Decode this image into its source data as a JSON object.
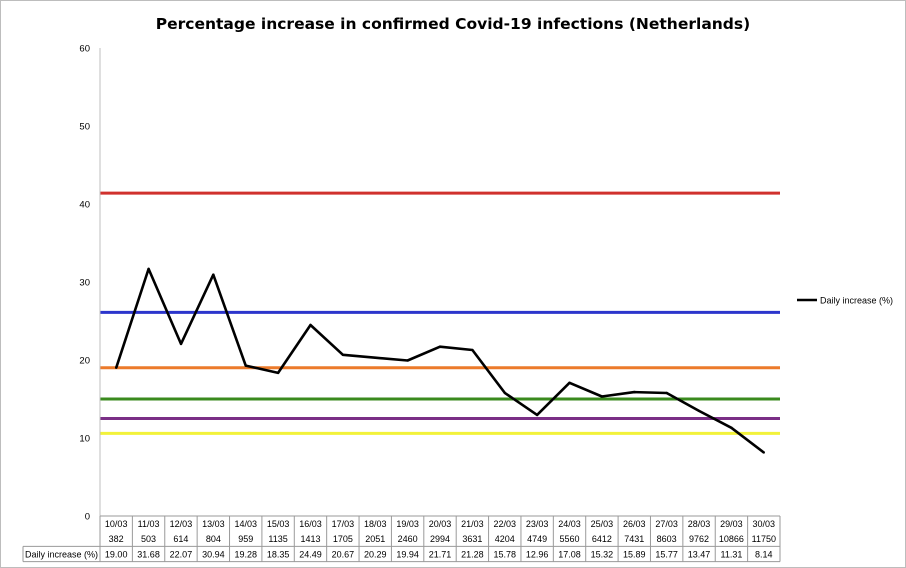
{
  "chart_data": {
    "type": "line",
    "title": "Percentage increase in confirmed Covid-19 infections (Netherlands)",
    "ylim": [
      0,
      60
    ],
    "yticks": [
      0,
      10,
      20,
      30,
      40,
      50,
      60
    ],
    "grid": false,
    "legend_position": "right",
    "categories": [
      "10/03",
      "11/03",
      "12/03",
      "13/03",
      "14/03",
      "15/03",
      "16/03",
      "17/03",
      "18/03",
      "19/03",
      "20/03",
      "21/03",
      "22/03",
      "23/03",
      "24/03",
      "25/03",
      "26/03",
      "27/03",
      "28/03",
      "29/03",
      "30/03"
    ],
    "confirmed_cases": [
      "382",
      "503",
      "614",
      "804",
      "959",
      "1135",
      "1413",
      "1705",
      "2051",
      "2460",
      "2994",
      "3631",
      "4204",
      "4749",
      "5560",
      "6412",
      "7431",
      "8603",
      "9762",
      "10866",
      "11750"
    ],
    "series": [
      {
        "name": "Daily increase (%)",
        "color": "#000000",
        "values": [
          19.0,
          31.68,
          22.07,
          30.94,
          19.28,
          18.35,
          24.49,
          20.67,
          20.29,
          19.94,
          21.71,
          21.28,
          15.78,
          12.96,
          17.08,
          15.32,
          15.89,
          15.77,
          13.47,
          11.31,
          8.14
        ],
        "value_labels": [
          "19.00",
          "31.68",
          "22.07",
          "30.94",
          "19.28",
          "18.35",
          "24.49",
          "20.67",
          "20.29",
          "19.94",
          "21.71",
          "21.28",
          "15.78",
          "12.96",
          "17.08",
          "15.32",
          "15.89",
          "15.77",
          "13.47",
          "11.31",
          "8.14"
        ]
      }
    ],
    "reference_lines": [
      {
        "value": 41.4,
        "color": "#d0312d"
      },
      {
        "value": 26.1,
        "color": "#2c35cc"
      },
      {
        "value": 19.0,
        "color": "#ec7a2a"
      },
      {
        "value": 15.0,
        "color": "#3a8a1e"
      },
      {
        "value": 12.5,
        "color": "#7a2f86"
      },
      {
        "value": 10.6,
        "color": "#f2f23a"
      }
    ]
  }
}
